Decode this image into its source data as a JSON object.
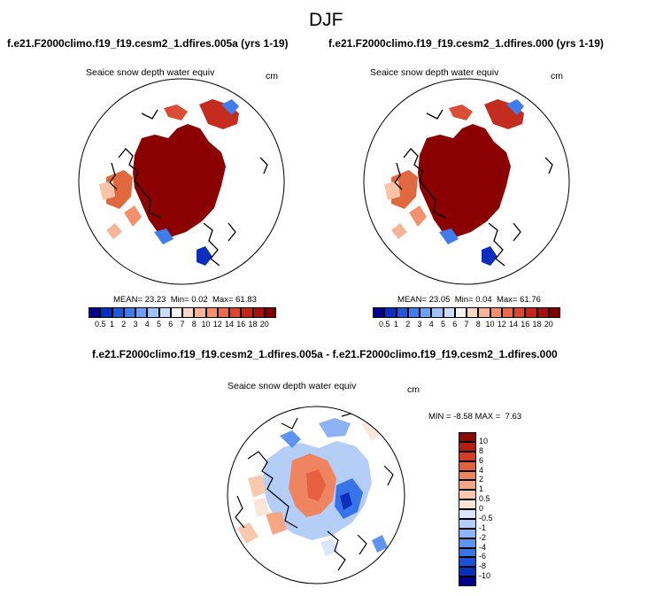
{
  "suptitle": "DJF",
  "colors": {
    "abs_scale": [
      "#00008b",
      "#0b2fbd",
      "#2157d9",
      "#3f7cec",
      "#6da0f2",
      "#9cc2f7",
      "#c9defb",
      "#f4f4f4",
      "#fbd8c4",
      "#f7b499",
      "#f2906f",
      "#ea6b4c",
      "#dc452f",
      "#c5241a",
      "#a5120d",
      "#800000"
    ],
    "diff_scale": [
      "#00008b",
      "#0b2fbd",
      "#1e50d8",
      "#3873e8",
      "#5f93f0",
      "#8db2f5",
      "#b5cef8",
      "#dbe6fb",
      "#fce6d9",
      "#f9c9ae",
      "#f5a784",
      "#ef8460",
      "#e65f3f",
      "#d63c25",
      "#b31e12",
      "#8a0b06"
    ],
    "land_line": "#000000"
  },
  "panels": [
    {
      "case_title": "f.e21.F2000climo.f19_f19.cesm2_1.dfires.005a (yrs 1-19)",
      "var_label": "Seaice snow depth water equiv",
      "units": "cm",
      "stats": {
        "mean_label": "MEAN=",
        "mean": "23.23",
        "min_label": "Min=",
        "min": "0.02",
        "max_label": "Max=",
        "max": "61.83"
      },
      "colorbar_ticks": [
        "0.5",
        "1",
        "2",
        "3",
        "4",
        "5",
        "6",
        "7",
        "8",
        "10",
        "12",
        "14",
        "16",
        "18",
        "20"
      ]
    },
    {
      "case_title": "f.e21.F2000climo.f19_f19.cesm2_1.dfires.000 (yrs 1-19)",
      "var_label": "Seaice snow depth water equiv",
      "units": "cm",
      "stats": {
        "mean_label": "MEAN=",
        "mean": "23.05",
        "min_label": "Min=",
        "min": "0.04",
        "max_label": "Max=",
        "max": "61.76"
      },
      "colorbar_ticks": [
        "0.5",
        "1",
        "2",
        "3",
        "4",
        "5",
        "6",
        "7",
        "8",
        "10",
        "12",
        "14",
        "16",
        "18",
        "20"
      ]
    }
  ],
  "diff_panel": {
    "case_title": "f.e21.F2000climo.f19_f19.cesm2_1.dfires.005a - f.e21.F2000climo.f19_f19.cesm2_1.dfires.000",
    "var_label": "Seaice snow depth water equiv",
    "units": "cm",
    "stats": {
      "min_label": "MIN =",
      "min": "-8.58",
      "max_label": "MAX =",
      "max": "7.63"
    },
    "colorbar_ticks": [
      "10",
      "8",
      "6",
      "4",
      "2",
      "1",
      "0.5",
      "0",
      "-0.5",
      "-1",
      "-2",
      "-4",
      "-6",
      "-8",
      "-10"
    ]
  }
}
